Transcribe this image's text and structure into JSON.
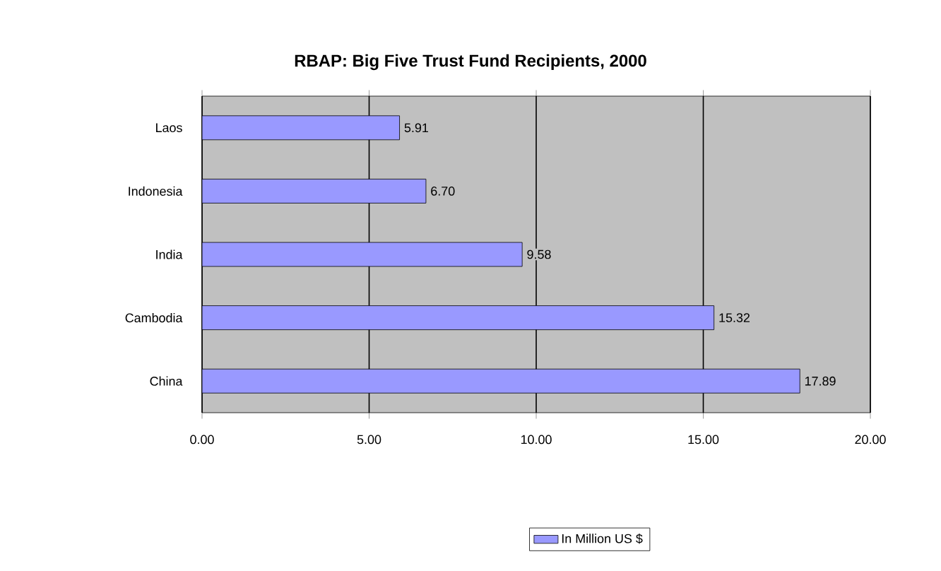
{
  "chart_data": {
    "type": "bar",
    "orientation": "horizontal",
    "title": "RBAP: Big Five Trust Fund Recipients, 2000",
    "categories": [
      "Laos",
      "Indonesia",
      "India",
      "Cambodia",
      "China"
    ],
    "series": [
      {
        "name": "In Million US $",
        "color": "#9999ff",
        "values": [
          5.91,
          6.7,
          9.58,
          15.32,
          17.89
        ],
        "value_labels": [
          "5.91",
          "6.70",
          "9.58",
          "15.32",
          "17.89"
        ]
      }
    ],
    "xlim": [
      0,
      20
    ],
    "xticks": [
      {
        "value": 0,
        "label": "0.00"
      },
      {
        "value": 5,
        "label": "5.00"
      },
      {
        "value": 10,
        "label": "10.00"
      },
      {
        "value": 15,
        "label": "15.00"
      },
      {
        "value": 20,
        "label": "20.00"
      }
    ],
    "grid": "x",
    "legend": "bottom"
  }
}
